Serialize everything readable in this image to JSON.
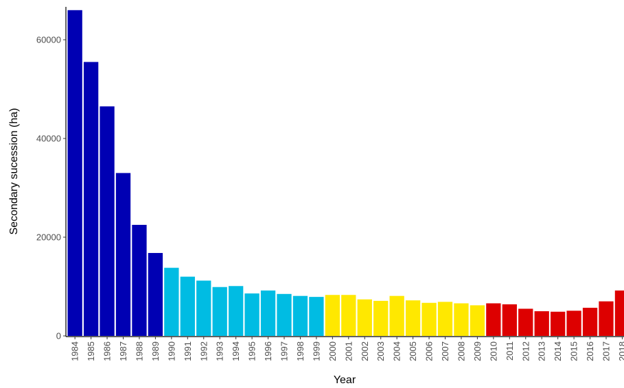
{
  "chart_data": {
    "type": "bar",
    "title": "",
    "xlabel": "Year",
    "ylabel": "Secondary sucession (ha)",
    "ylim": [
      0,
      66000
    ],
    "yticks": [
      0,
      20000,
      40000,
      60000
    ],
    "ytick_labels": [
      "0",
      "20000",
      "40000",
      "60000"
    ],
    "grid": false,
    "legend": "none",
    "categories": [
      "1984",
      "1985",
      "1986",
      "1987",
      "1988",
      "1989",
      "1990",
      "1991",
      "1992",
      "1993",
      "1994",
      "1995",
      "1996",
      "1997",
      "1998",
      "1999",
      "2000",
      "2001",
      "2002",
      "2003",
      "2004",
      "2005",
      "2006",
      "2007",
      "2008",
      "2009",
      "2010",
      "2011",
      "2012",
      "2013",
      "2014",
      "2015",
      "2016",
      "2017",
      "2018"
    ],
    "values": [
      66000,
      55500,
      46500,
      33000,
      22500,
      16800,
      13800,
      12000,
      11200,
      9900,
      10100,
      8600,
      9200,
      8500,
      8100,
      7900,
      8300,
      8300,
      7400,
      7100,
      8100,
      7200,
      6700,
      6900,
      6600,
      6200,
      6600,
      6400,
      5500,
      5000,
      4900,
      5100,
      5700,
      7000,
      9200
    ],
    "bar_colors": [
      "#0000b3",
      "#0000b3",
      "#0000b3",
      "#0000b3",
      "#0000b3",
      "#0000b3",
      "#00bce3",
      "#00bce3",
      "#00bce3",
      "#00bce3",
      "#00bce3",
      "#00bce3",
      "#00bce3",
      "#00bce3",
      "#00bce3",
      "#00bce3",
      "#ffe800",
      "#ffe800",
      "#ffe800",
      "#ffe800",
      "#ffe800",
      "#ffe800",
      "#ffe800",
      "#ffe800",
      "#ffe800",
      "#ffe800",
      "#dd0000",
      "#dd0000",
      "#dd0000",
      "#dd0000",
      "#dd0000",
      "#dd0000",
      "#dd0000",
      "#dd0000",
      "#dd0000"
    ]
  }
}
